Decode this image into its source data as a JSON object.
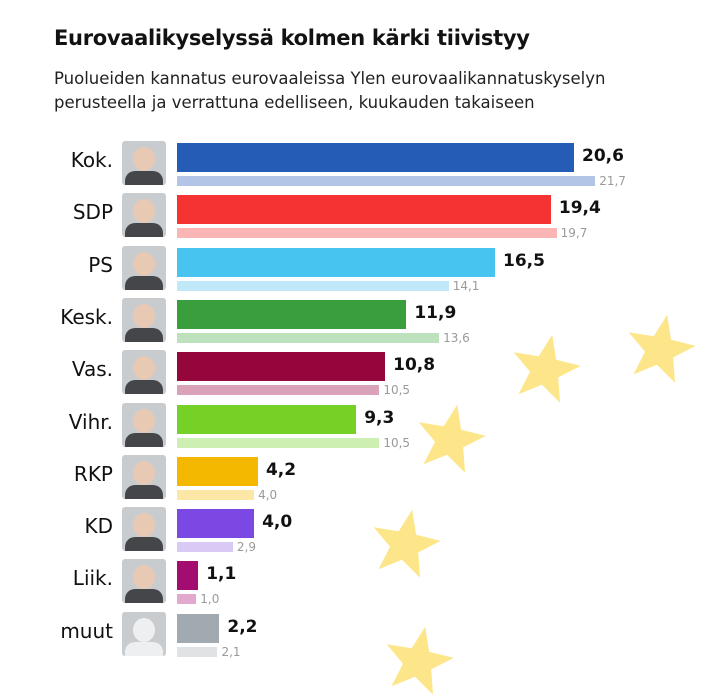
{
  "chart_data": {
    "type": "bar",
    "title": "Eurovaalikyselyssä kolmen kärki tiivistyy",
    "subtitle": "Puolueiden kannatus eurovaaleissa Ylen eurovaalikannatuskyselyn perusteella ja verrattuna edelliseen, kuukauden takaiseen",
    "categories": [
      "Kok.",
      "SDP",
      "PS",
      "Kesk.",
      "Vas.",
      "Vihr.",
      "RKP",
      "KD",
      "Liik.",
      "muut"
    ],
    "series": [
      {
        "name": "current",
        "values": [
          20.6,
          19.4,
          16.5,
          11.9,
          10.8,
          9.3,
          4.2,
          4.0,
          1.1,
          2.2
        ],
        "labels": [
          "20,6",
          "19,4",
          "16,5",
          "11,9",
          "10,8",
          "9,3",
          "4,2",
          "4,0",
          "1,1",
          "2,2"
        ]
      },
      {
        "name": "previous",
        "values": [
          21.7,
          19.7,
          14.1,
          13.6,
          10.5,
          10.5,
          4.0,
          2.9,
          1.0,
          2.1
        ],
        "labels": [
          "21,7",
          "19,7",
          "14,1",
          "13,6",
          "10,5",
          "10,5",
          "4,0",
          "2,9",
          "1,0",
          "2,1"
        ]
      }
    ],
    "colors": [
      "#245cb6",
      "#f63333",
      "#47c5f0",
      "#3a9e3c",
      "#94063c",
      "#75d125",
      "#f4b800",
      "#7b48e3",
      "#a30d72",
      "#a1aab1"
    ],
    "prev_colors": [
      "#b2c5e6",
      "#fbb5b5",
      "#bfe9f9",
      "#bde0bd",
      "#d9a2b8",
      "#cdf0b2",
      "#fce7a6",
      "#d9c9f5",
      "#e3a8ce",
      "#e0e2e4"
    ],
    "photo_placeholder": [
      false,
      false,
      false,
      false,
      false,
      false,
      false,
      false,
      false,
      true
    ]
  }
}
